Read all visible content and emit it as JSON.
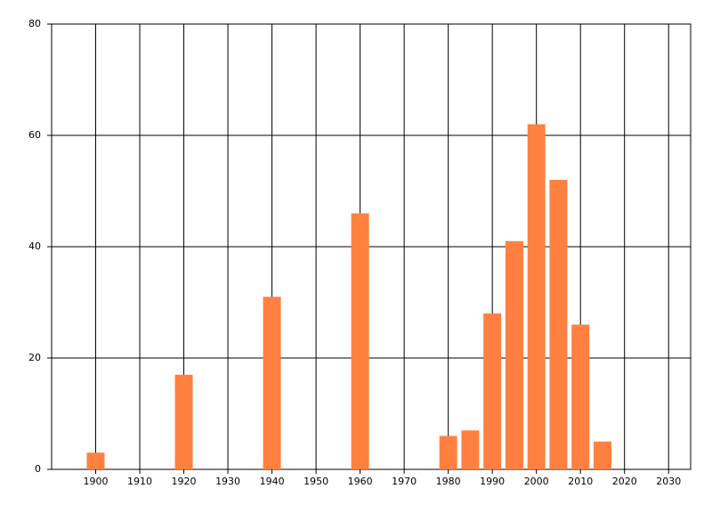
{
  "chart_data": {
    "type": "bar",
    "x": [
      1900,
      1920,
      1940,
      1960,
      1980,
      1985,
      1990,
      1995,
      2000,
      2005,
      2010,
      2015
    ],
    "values": [
      3,
      17,
      31,
      46,
      6,
      7,
      28,
      41,
      62,
      52,
      26,
      5
    ],
    "color": "#ff8040",
    "xlim": [
      1890,
      2035
    ],
    "xticks": [
      1900,
      1910,
      1920,
      1930,
      1940,
      1950,
      1960,
      1970,
      1980,
      1990,
      2000,
      2010,
      2020,
      2030
    ],
    "ylim": [
      0,
      80
    ],
    "yticks": [
      0,
      20,
      40,
      60,
      80
    ],
    "grid": true
  }
}
